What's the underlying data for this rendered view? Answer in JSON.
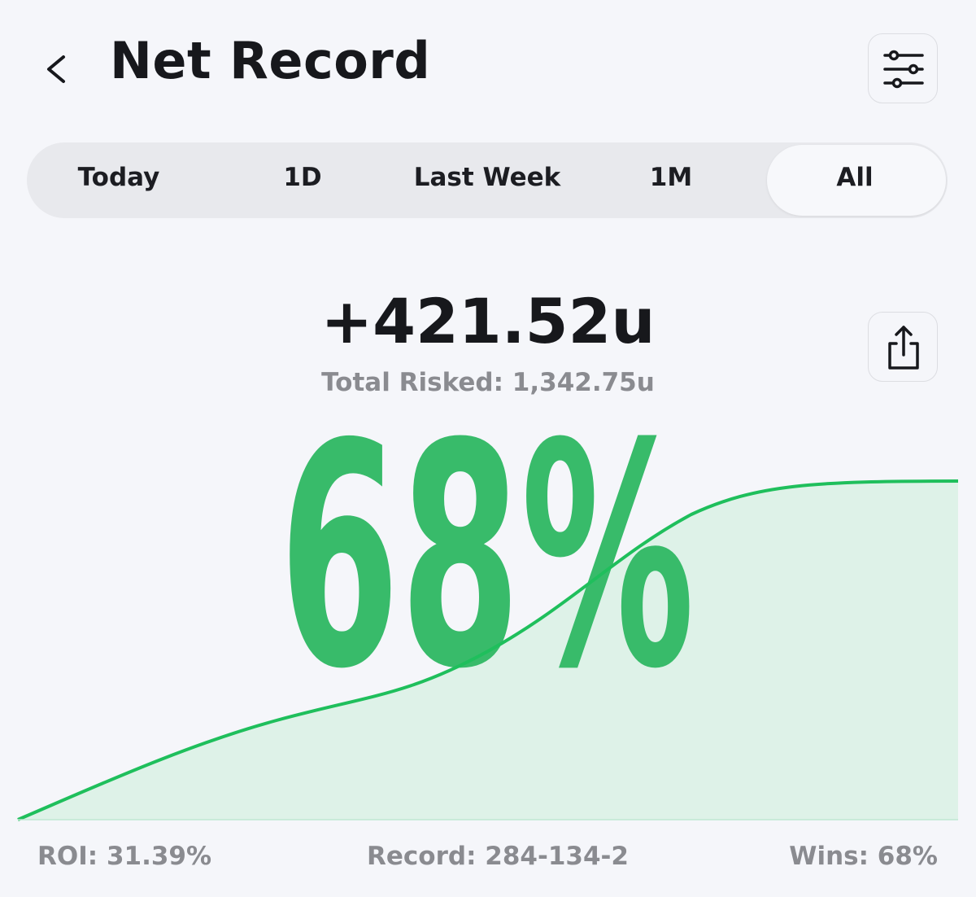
{
  "header": {
    "title": "Net Record"
  },
  "tabs": [
    "Today",
    "1D",
    "Last Week",
    "1M",
    "All"
  ],
  "summary": {
    "net": "+421.52u",
    "total_risked": "Total Risked: 1,342.75u",
    "win_rate": "68%"
  },
  "stats": {
    "roi": "ROI: 31.39%",
    "record": "Record: 284-134-2",
    "wins": "Wins: 68%"
  }
}
